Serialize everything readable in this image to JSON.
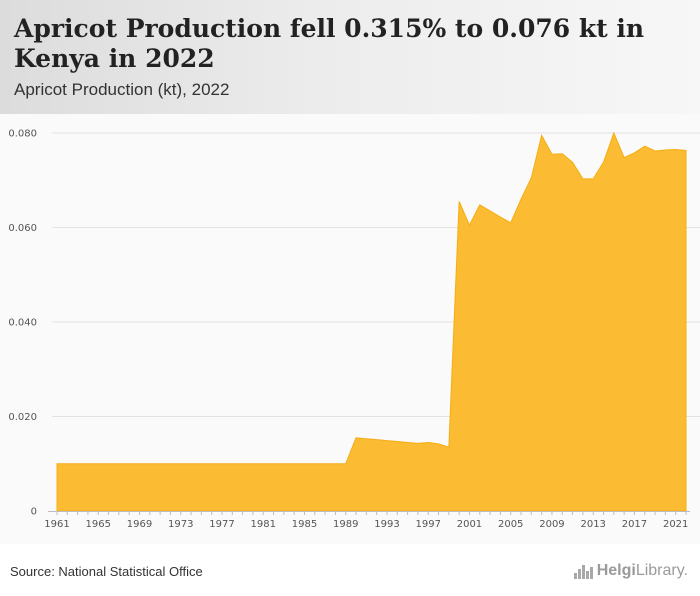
{
  "header": {
    "title": "Apricot Production fell 0.315% to 0.076 kt in Kenya in 2022",
    "subtitle": "Apricot Production (kt), 2022"
  },
  "footer": {
    "source": "Source: National Statistical Office",
    "logo_text_bold": "Helgi",
    "logo_text_rest": "Library."
  },
  "colors": {
    "area_fill": "#fbbc33",
    "area_stroke": "#f5ad10",
    "grid": "#e2e2e2"
  },
  "chart_data": {
    "type": "area",
    "x_tick_labels": [
      "1961",
      "1965",
      "1969",
      "1973",
      "1977",
      "1981",
      "1985",
      "1989",
      "1993",
      "1997",
      "2001",
      "2005",
      "2009",
      "2013",
      "2017",
      "2021"
    ],
    "y_tick_labels": [
      "0",
      "0.020",
      "0.040",
      "0.060",
      "0.080"
    ],
    "ylim": [
      0,
      0.08
    ],
    "xlim": [
      1961,
      2022
    ],
    "grid": true,
    "series": [
      {
        "x": [
          1961,
          1962,
          1963,
          1964,
          1965,
          1966,
          1967,
          1968,
          1969,
          1970,
          1971,
          1972,
          1973,
          1974,
          1975,
          1976,
          1977,
          1978,
          1979,
          1980,
          1981,
          1982,
          1983,
          1984,
          1985,
          1986,
          1987,
          1988,
          1989,
          1990,
          1991,
          1992,
          1993,
          1994,
          1995,
          1996,
          1997,
          1998,
          1999,
          2000,
          2001,
          2002,
          2003,
          2004,
          2005,
          2006,
          2007,
          2008,
          2009,
          2010,
          2011,
          2012,
          2013,
          2014,
          2015,
          2016,
          2017,
          2018,
          2019,
          2020,
          2021,
          2022
        ],
        "values": [
          0.01,
          0.01,
          0.01,
          0.01,
          0.01,
          0.01,
          0.01,
          0.01,
          0.01,
          0.01,
          0.01,
          0.01,
          0.01,
          0.01,
          0.01,
          0.01,
          0.01,
          0.01,
          0.01,
          0.01,
          0.01,
          0.01,
          0.01,
          0.01,
          0.01,
          0.01,
          0.01,
          0.01,
          0.01,
          0.0155,
          0.0153,
          0.0151,
          0.0149,
          0.0147,
          0.0145,
          0.0143,
          0.0145,
          0.0142,
          0.0135,
          0.0655,
          0.0605,
          0.0648,
          0.0635,
          0.0622,
          0.061,
          0.066,
          0.0705,
          0.0795,
          0.0755,
          0.0756,
          0.0738,
          0.0703,
          0.0703,
          0.0738,
          0.08,
          0.0748,
          0.0758,
          0.0772,
          0.0762,
          0.0764,
          0.0765,
          0.0763
        ]
      }
    ]
  }
}
